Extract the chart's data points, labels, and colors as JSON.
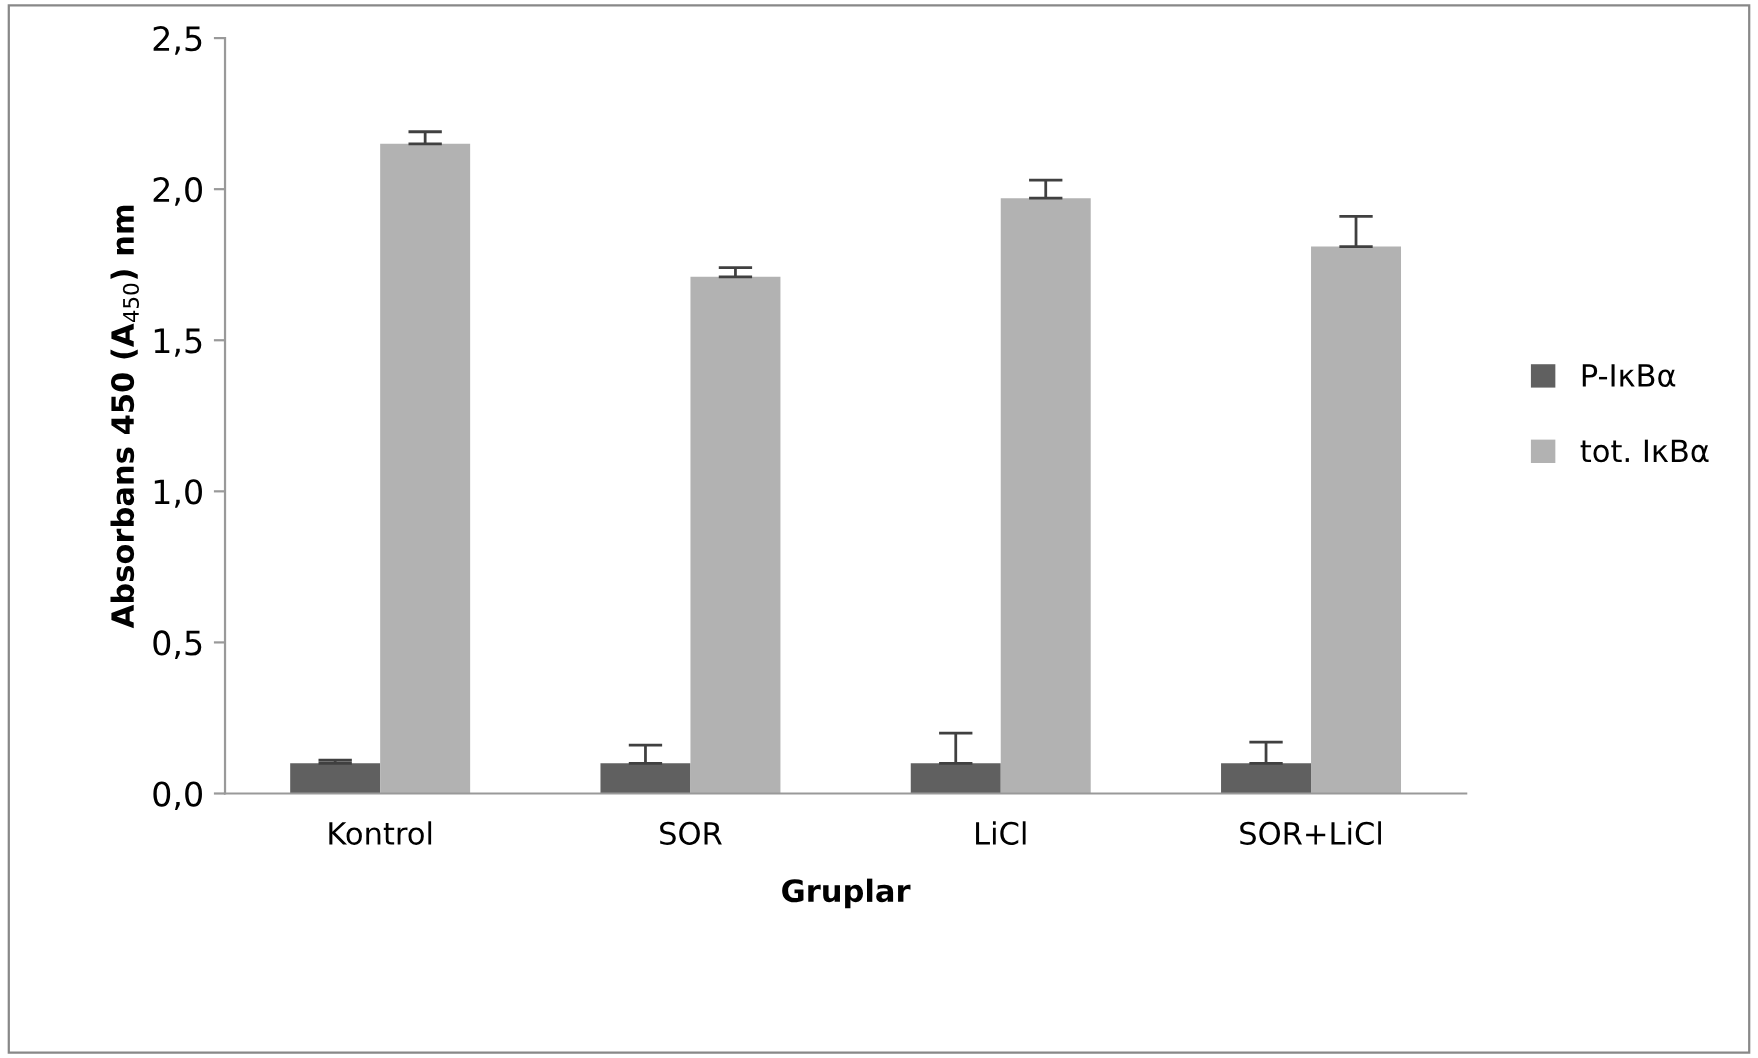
{
  "chart_data": {
    "type": "bar",
    "xlabel": "Gruplar",
    "ylabel": "Absorbans 450 (A$_{450}$) nm",
    "categories": [
      "Kontrol",
      "SOR",
      "LiCl",
      "SOR+LiCl"
    ],
    "series": [
      {
        "name": "P-IκBα",
        "color": "#606060",
        "values": [
          0.1,
          0.1,
          0.1,
          0.1
        ],
        "errors": [
          [
            0.1,
            0.11
          ],
          [
            0.1,
            0.16
          ],
          [
            0.1,
            0.2
          ],
          [
            0.1,
            0.17
          ]
        ]
      },
      {
        "name": "tot. IκBα",
        "color": "#b2b2b2",
        "values": [
          2.15,
          1.71,
          1.97,
          1.81
        ],
        "errors": [
          [
            2.15,
            2.19
          ],
          [
            1.71,
            1.74
          ],
          [
            1.97,
            2.03
          ],
          [
            1.81,
            1.91
          ]
        ]
      }
    ],
    "ylim": [
      0,
      2.5
    ],
    "yticks": [
      {
        "value": 0,
        "label": "0,0"
      },
      {
        "value": 0.5,
        "label": "0,5"
      },
      {
        "value": 1,
        "label": "1,0"
      },
      {
        "value": 1.5,
        "label": "1,5"
      },
      {
        "value": 2,
        "label": "2,0"
      },
      {
        "value": 2.5,
        "label": "2,5"
      }
    ],
    "grid": false,
    "legend": "right"
  }
}
